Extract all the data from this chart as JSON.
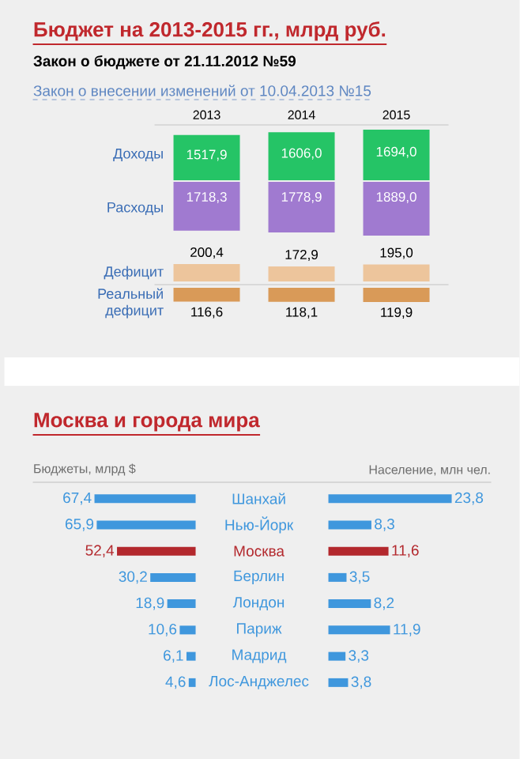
{
  "chart_data": [
    {
      "type": "other",
      "title": "Бюджет на 2013-2015 гг., млрд руб.",
      "subtitle": "Закон о бюджете от 21.11.2012 №59",
      "annotations": [
        "Закон о внесении изменений от 10.04.2013 №15"
      ],
      "categories": [
        "2013",
        "2014",
        "2015"
      ],
      "series": [
        {
          "name": "Доходы",
          "color": "#25c466",
          "values": [
            1517.9,
            1606.0,
            1694.0
          ],
          "value_labels": [
            "1517,9",
            "1606,0",
            "1694,0"
          ]
        },
        {
          "name": "Расходы",
          "color": "#a07ad0",
          "values": [
            1718.3,
            1778.9,
            1889.0
          ],
          "value_labels": [
            "1718,3",
            "1778,9",
            "1889,0"
          ]
        },
        {
          "name": "Дефицит",
          "color": "#edc59c",
          "values": [
            200.4,
            172.9,
            195.0
          ],
          "value_labels": [
            "200,4",
            "172,9",
            "195,0"
          ]
        },
        {
          "name": "Реальный дефицит",
          "color": "#d99a58",
          "values": [
            116.6,
            118.1,
            119.9
          ],
          "value_labels": [
            "116,6",
            "118,1",
            "119,9"
          ]
        }
      ]
    },
    {
      "type": "bar",
      "orientation": "horizontal",
      "title": "Москва и города мира",
      "xlabel": "Бюджеты, млрд $",
      "tick_labels": "y",
      "categories": [
        "Шанхай",
        "Нью-Йорк",
        "Москва",
        "Берлин",
        "Лондон",
        "Париж",
        "Мадрид",
        "Лос-Анджелес"
      ],
      "values": [
        67.4,
        65.9,
        52.4,
        30.2,
        18.9,
        10.6,
        6.1,
        4.6
      ],
      "colors": [
        "#3f97dd",
        "#3f97dd",
        "#b3282d",
        "#3f97dd",
        "#3f97dd",
        "#3f97dd",
        "#3f97dd",
        "#3f97dd"
      ],
      "value_labels": [
        "67,4",
        "65,9",
        "52,4",
        "30,2",
        "18,9",
        "10,6",
        "6,1",
        "4,6"
      ]
    },
    {
      "type": "bar",
      "orientation": "horizontal",
      "xlabel": "Население, млн чел.",
      "tick_labels": false,
      "categories": [
        null,
        null,
        null,
        null,
        null,
        null,
        null,
        null
      ],
      "values": [
        23.8,
        8.3,
        11.6,
        3.5,
        8.2,
        11.9,
        3.3,
        3.8
      ],
      "colors": [
        "#3f97dd",
        "#3f97dd",
        "#b3282d",
        "#3f97dd",
        "#3f97dd",
        "#3f97dd",
        "#3f97dd",
        "#3f97dd"
      ],
      "value_labels": [
        "23,8",
        "8,3",
        "11,6",
        "3,5",
        "8,2",
        "11,9",
        "3,3",
        "3,8"
      ]
    }
  ]
}
